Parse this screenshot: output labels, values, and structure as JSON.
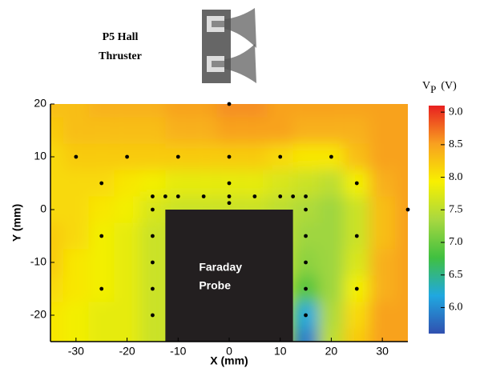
{
  "chart_data": {
    "type": "contour",
    "title": [
      "P5 Hall",
      "Thruster"
    ],
    "xlabel": "X (mm)",
    "ylabel": "Y (mm)",
    "xlim": [
      -35,
      35
    ],
    "ylim": [
      -25,
      20
    ],
    "xticks": [
      -30,
      -20,
      -10,
      0,
      10,
      20,
      30
    ],
    "yticks": [
      -20,
      -10,
      0,
      10,
      20
    ],
    "contour": {
      "x": [
        -35,
        -30,
        -25,
        -20,
        -15,
        -10,
        -5,
        0,
        5,
        10,
        15,
        20,
        25,
        30,
        35
      ],
      "y": [
        20,
        15,
        10,
        5,
        0,
        -5,
        -10,
        -15,
        -20,
        -25
      ],
      "z": [
        [
          8.3,
          8.3,
          8.4,
          8.4,
          8.4,
          8.5,
          8.5,
          8.6,
          8.6,
          8.5,
          8.5,
          8.5,
          8.5,
          8.5,
          8.5
        ],
        [
          8.2,
          8.3,
          8.3,
          8.3,
          8.3,
          8.4,
          8.4,
          8.5,
          8.5,
          8.5,
          8.4,
          8.4,
          8.4,
          8.5,
          8.5
        ],
        [
          8.1,
          8.2,
          8.2,
          8.2,
          8.2,
          8.2,
          8.2,
          8.2,
          8.2,
          8.1,
          8.0,
          8.0,
          8.3,
          8.5,
          8.5
        ],
        [
          8.1,
          8.1,
          8.1,
          8.0,
          7.9,
          7.8,
          7.8,
          7.8,
          7.8,
          7.7,
          7.6,
          7.5,
          7.9,
          8.4,
          8.5
        ],
        [
          8.1,
          8.1,
          8.0,
          7.9,
          7.7,
          7.6,
          7.6,
          7.6,
          7.6,
          7.5,
          7.4,
          7.3,
          7.6,
          8.3,
          8.5
        ],
        [
          8.2,
          8.1,
          7.9,
          7.8,
          7.6,
          null,
          null,
          null,
          null,
          null,
          7.3,
          7.3,
          7.6,
          8.3,
          8.5
        ],
        [
          8.2,
          8.0,
          7.9,
          7.8,
          7.6,
          null,
          null,
          null,
          null,
          null,
          7.2,
          7.3,
          7.7,
          8.4,
          8.5
        ],
        [
          8.1,
          8.0,
          7.9,
          7.8,
          7.6,
          null,
          null,
          null,
          null,
          null,
          6.9,
          7.3,
          7.9,
          8.4,
          8.5
        ],
        [
          8.0,
          7.9,
          7.8,
          7.8,
          7.6,
          null,
          null,
          null,
          null,
          null,
          6.2,
          7.4,
          8.1,
          8.5,
          8.5
        ],
        [
          8.0,
          7.9,
          7.8,
          7.8,
          7.6,
          null,
          null,
          null,
          null,
          null,
          5.9,
          7.5,
          8.2,
          8.5,
          8.5
        ]
      ]
    },
    "colormap": [
      "#3050b0",
      "#20a8e0",
      "#40c040",
      "#a8d840",
      "#f8f000",
      "#f8a020",
      "#e82020"
    ],
    "colorbar_lim": [
      5.6,
      9.1
    ],
    "colorbar_ticks": [
      {
        "value": 6,
        "label": "6.0"
      },
      6.5,
      {
        "value": 7,
        "label": "7.0"
      },
      7.5,
      {
        "value": 8,
        "label": "8.0"
      },
      8.5,
      {
        "value": 9,
        "label": "9.0"
      }
    ],
    "colorbar_label": [
      "V",
      "P",
      "(V)"
    ],
    "annotation": [
      "Faraday",
      "Probe"
    ],
    "series": [
      {
        "color": "#000000",
        "x": [
          0,
          -30,
          -20,
          -10,
          0,
          10,
          20,
          -25,
          25,
          0,
          -15,
          -12.5,
          -10,
          -5,
          0,
          5,
          10,
          12.5,
          15,
          0,
          -15,
          15,
          35,
          -25,
          25,
          -15,
          15,
          -15,
          15,
          -25,
          -15,
          15,
          25,
          -15,
          15
        ],
        "y": [
          20,
          10,
          10,
          10,
          10,
          10,
          10,
          5,
          5,
          5,
          2.5,
          2.5,
          2.5,
          2.5,
          2.5,
          2.5,
          2.5,
          2.5,
          2.5,
          1.25,
          0,
          0,
          0,
          -5,
          -5,
          -5,
          -5,
          -10,
          -10,
          -15,
          -15,
          -15,
          -15,
          -20,
          -20
        ]
      }
    ]
  }
}
